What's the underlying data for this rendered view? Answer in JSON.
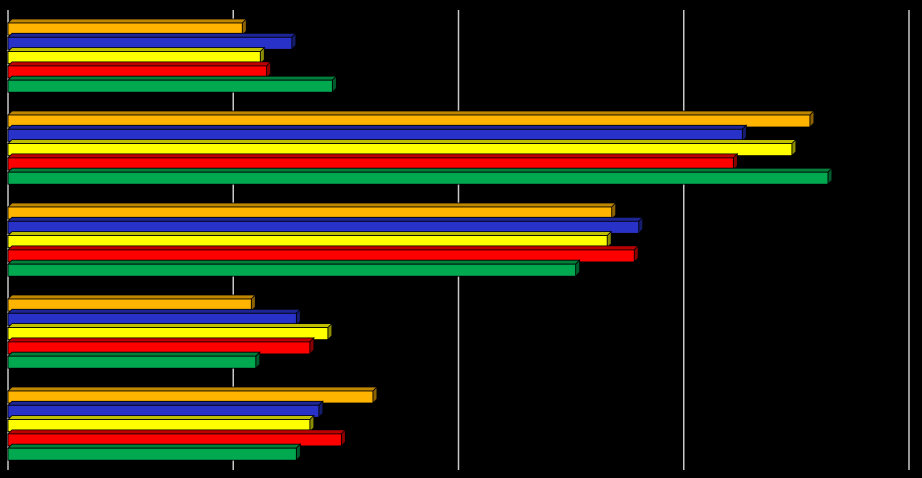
{
  "chart_data": {
    "type": "bar",
    "orientation": "horizontal",
    "style": "3d",
    "background": "#000000",
    "grid": true,
    "xlim": [
      0,
      100
    ],
    "gridlines": [
      0,
      25,
      50,
      75,
      100
    ],
    "categories": [
      "",
      "",
      "",
      "",
      ""
    ],
    "series": [
      {
        "color": "#FFB400",
        "values": [
          26,
          89,
          67,
          27,
          40.5
        ]
      },
      {
        "color": "#2832C8",
        "values": [
          31.5,
          81.5,
          70,
          32,
          34.5
        ]
      },
      {
        "color": "#FFFF00",
        "values": [
          28,
          87,
          66.5,
          35.5,
          33.5
        ]
      },
      {
        "color": "#FF0000",
        "values": [
          28.7,
          80.5,
          69.5,
          33.5,
          37
        ]
      },
      {
        "color": "#00A850",
        "values": [
          36,
          91,
          63,
          27.5,
          32
        ]
      }
    ]
  }
}
